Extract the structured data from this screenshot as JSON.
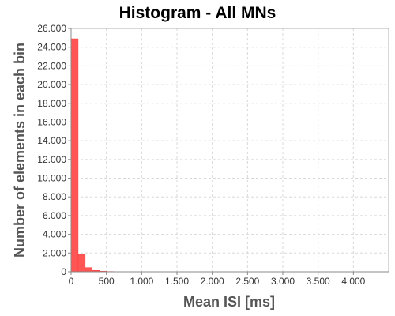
{
  "chart_data": {
    "type": "bar",
    "title": "Histogram - All MNs",
    "xlabel": "Mean ISI [ms]",
    "ylabel": "Number of elements in each bin",
    "xlim": [
      0,
      4500
    ],
    "ylim": [
      0,
      26000
    ],
    "x_ticks": [
      0,
      500,
      1000,
      1500,
      2000,
      2500,
      3000,
      3500,
      4000
    ],
    "x_tick_labels": [
      "0",
      "500",
      "1.000",
      "1.500",
      "2.000",
      "2.500",
      "3.000",
      "3.500",
      "4.000"
    ],
    "y_ticks": [
      0,
      2000,
      4000,
      6000,
      8000,
      10000,
      12000,
      14000,
      16000,
      18000,
      20000,
      22000,
      24000,
      26000
    ],
    "y_tick_labels": [
      "0",
      "2.000",
      "4.000",
      "6.000",
      "8.000",
      "10.000",
      "12.000",
      "14.000",
      "16.000",
      "18.000",
      "20.000",
      "22.000",
      "24.000",
      "26.000"
    ],
    "bin_width": 100,
    "bins": [
      {
        "x_start": 0,
        "x_end": 100,
        "value": 24900
      },
      {
        "x_start": 100,
        "x_end": 200,
        "value": 1900
      },
      {
        "x_start": 200,
        "x_end": 300,
        "value": 450
      },
      {
        "x_start": 300,
        "x_end": 400,
        "value": 150
      },
      {
        "x_start": 400,
        "x_end": 500,
        "value": 60
      },
      {
        "x_start": 500,
        "x_end": 600,
        "value": 30
      },
      {
        "x_start": 600,
        "x_end": 700,
        "value": 15
      },
      {
        "x_start": 700,
        "x_end": 800,
        "value": 8
      },
      {
        "x_start": 800,
        "x_end": 900,
        "value": 5
      },
      {
        "x_start": 900,
        "x_end": 1000,
        "value": 3
      }
    ],
    "grid": true,
    "legend": false
  },
  "colors": {
    "bar_fill": "#ff5555",
    "bar_stroke": "#ff3b3b",
    "title": "#000000",
    "axis_title": "#555555",
    "tick_text": "#333333",
    "grid": "#d8d8d8"
  }
}
